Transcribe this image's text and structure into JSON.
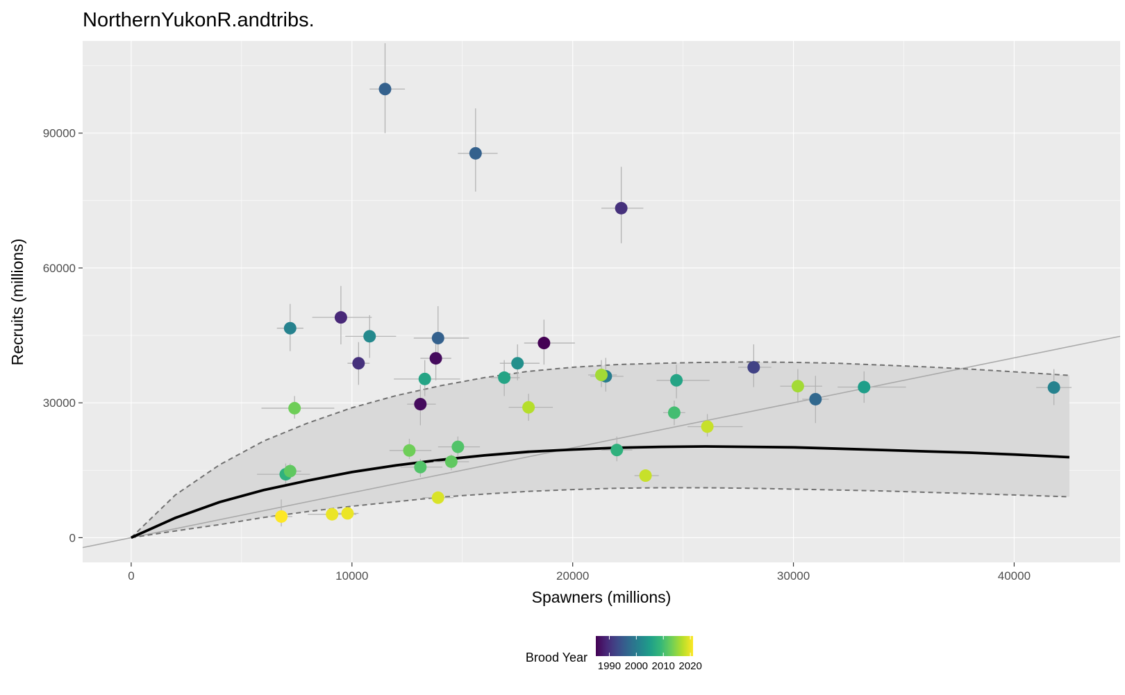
{
  "chart_data": {
    "type": "scatter",
    "title": "NorthernYukonR.andtribs.",
    "xlabel": "Spawners (millions)",
    "ylabel": "Recruits (millions)",
    "xlim": [
      -2200,
      44800
    ],
    "ylim": [
      -5500,
      110500
    ],
    "x_ticks": [
      0,
      10000,
      20000,
      30000,
      40000
    ],
    "y_ticks": [
      0,
      30000,
      60000,
      90000
    ],
    "x_tick_labels": [
      "0",
      "10000",
      "20000",
      "30000",
      "40000"
    ],
    "y_tick_labels": [
      "0",
      "30000",
      "60000",
      "90000"
    ],
    "grid": true,
    "panel_background": "#ebebeb",
    "gridline_color": "#ffffff",
    "legend": {
      "title": "Brood Year",
      "placement": "bottom",
      "type": "colorbar",
      "range": [
        1985,
        2021
      ],
      "ticks": [
        1990,
        2000,
        2010,
        2020
      ],
      "tick_labels": [
        "1990",
        "2000",
        "2010",
        "2020"
      ],
      "colormap": [
        "#440154",
        "#482878",
        "#3e4a89",
        "#31688e",
        "#26828e",
        "#1f9e89",
        "#35b779",
        "#6ece58",
        "#b5de2b",
        "#fde725"
      ]
    },
    "points": [
      {
        "x": 11500,
        "y": 99800,
        "xerr": [
          10800,
          12400
        ],
        "yerr": [
          90000,
          110000
        ],
        "year": 1996
      },
      {
        "x": 15600,
        "y": 85500,
        "xerr": [
          14800,
          16600
        ],
        "yerr": [
          77000,
          95500
        ],
        "year": 1996
      },
      {
        "x": 22200,
        "y": 73300,
        "xerr": [
          21300,
          23200
        ],
        "yerr": [
          65500,
          82500
        ],
        "year": 1990
      },
      {
        "x": 9500,
        "y": 49000,
        "xerr": [
          8200,
          10900
        ],
        "yerr": [
          43000,
          56000
        ],
        "year": 1989
      },
      {
        "x": 7200,
        "y": 46600,
        "xerr": [
          6600,
          7800
        ],
        "yerr": [
          41500,
          52000
        ],
        "year": 2001
      },
      {
        "x": 10800,
        "y": 44800,
        "xerr": [
          9700,
          12000
        ],
        "yerr": [
          40000,
          49500
        ],
        "year": 2002
      },
      {
        "x": 13900,
        "y": 44400,
        "xerr": [
          12800,
          15300
        ],
        "yerr": [
          39500,
          51500
        ],
        "year": 1996
      },
      {
        "x": 18700,
        "y": 43300,
        "xerr": [
          17800,
          20100
        ],
        "yerr": [
          38500,
          48500
        ],
        "year": 1985
      },
      {
        "x": 10300,
        "y": 38800,
        "xerr": [
          9800,
          10800
        ],
        "yerr": [
          34000,
          43500
        ],
        "year": 1990
      },
      {
        "x": 13800,
        "y": 39900,
        "xerr": [
          13100,
          14500
        ],
        "yerr": [
          35000,
          44000
        ],
        "year": 1986
      },
      {
        "x": 17500,
        "y": 38800,
        "xerr": [
          16700,
          18500
        ],
        "yerr": [
          35000,
          43000
        ],
        "year": 2003
      },
      {
        "x": 28200,
        "y": 37900,
        "xerr": [
          27500,
          29000
        ],
        "yerr": [
          33500,
          43000
        ],
        "year": 1992
      },
      {
        "x": 13300,
        "y": 35300,
        "xerr": [
          11900,
          14900
        ],
        "yerr": [
          31500,
          39500
        ],
        "year": 2006
      },
      {
        "x": 16900,
        "y": 35600,
        "xerr": [
          16300,
          17600
        ],
        "yerr": [
          31500,
          39500
        ],
        "year": 2006
      },
      {
        "x": 21500,
        "y": 35900,
        "xerr": [
          20800,
          22300
        ],
        "yerr": [
          32500,
          40000
        ],
        "year": 2000
      },
      {
        "x": 21300,
        "y": 36200,
        "xerr": [
          20700,
          22000
        ],
        "yerr": [
          33500,
          39500
        ],
        "year": 2016
      },
      {
        "x": 24700,
        "y": 35000,
        "xerr": [
          23800,
          26200
        ],
        "yerr": [
          31000,
          38500
        ],
        "year": 2006
      },
      {
        "x": 30200,
        "y": 33700,
        "xerr": [
          29400,
          31300
        ],
        "yerr": [
          30000,
          37500
        ],
        "year": 2016
      },
      {
        "x": 33200,
        "y": 33500,
        "xerr": [
          32000,
          35100
        ],
        "yerr": [
          30000,
          37000
        ],
        "year": 2005
      },
      {
        "x": 41800,
        "y": 33400,
        "xerr": [
          41000,
          42600
        ],
        "yerr": [
          29500,
          37500
        ],
        "year": 2001
      },
      {
        "x": 31000,
        "y": 30800,
        "xerr": [
          30400,
          31600
        ],
        "yerr": [
          25500,
          36000
        ],
        "year": 1997
      },
      {
        "x": 13100,
        "y": 29700,
        "xerr": [
          12500,
          13800
        ],
        "yerr": [
          25000,
          34000
        ],
        "year": 1986
      },
      {
        "x": 7400,
        "y": 28800,
        "xerr": [
          5900,
          9200
        ],
        "yerr": [
          26500,
          31500
        ],
        "year": 2013
      },
      {
        "x": 18000,
        "y": 29000,
        "xerr": [
          17100,
          19100
        ],
        "yerr": [
          26000,
          32000
        ],
        "year": 2017
      },
      {
        "x": 24600,
        "y": 27800,
        "xerr": [
          24100,
          25100
        ],
        "yerr": [
          25000,
          30500
        ],
        "year": 2010
      },
      {
        "x": 26100,
        "y": 24700,
        "xerr": [
          25200,
          27700
        ],
        "yerr": [
          22500,
          27500
        ],
        "year": 2018
      },
      {
        "x": 12600,
        "y": 19400,
        "xerr": [
          11700,
          13600
        ],
        "yerr": [
          17500,
          22000
        ],
        "year": 2013
      },
      {
        "x": 14800,
        "y": 20200,
        "xerr": [
          13900,
          15800
        ],
        "yerr": [
          18000,
          22500
        ],
        "year": 2011
      },
      {
        "x": 22000,
        "y": 19500,
        "xerr": [
          21300,
          22700
        ],
        "yerr": [
          17000,
          22500
        ],
        "year": 2008
      },
      {
        "x": 13100,
        "y": 15700,
        "xerr": [
          12200,
          14100
        ],
        "yerr": [
          13500,
          17500
        ],
        "year": 2011
      },
      {
        "x": 14500,
        "y": 16900,
        "xerr": [
          13700,
          15300
        ],
        "yerr": [
          15000,
          18500
        ],
        "year": 2012
      },
      {
        "x": 7000,
        "y": 14100,
        "xerr": [
          5700,
          8100
        ],
        "yerr": [
          12000,
          16500
        ],
        "year": 2008
      },
      {
        "x": 7200,
        "y": 14800,
        "xerr": [
          6800,
          7700
        ],
        "yerr": [
          13000,
          16500
        ],
        "year": 2012
      },
      {
        "x": 23300,
        "y": 13800,
        "xerr": [
          22800,
          23900
        ],
        "yerr": [
          12500,
          15000
        ],
        "year": 2018
      },
      {
        "x": 13900,
        "y": 8900,
        "xerr": [
          13200,
          14600
        ],
        "yerr": [
          7800,
          10000
        ],
        "year": 2019
      },
      {
        "x": 6800,
        "y": 4700,
        "xerr": [
          6300,
          7300
        ],
        "yerr": [
          2500,
          8500
        ],
        "year": 2021
      },
      {
        "x": 9100,
        "y": 5200,
        "xerr": [
          8000,
          10200
        ],
        "yerr": [
          4000,
          6500
        ],
        "year": 2020
      },
      {
        "x": 9800,
        "y": 5400,
        "xerr": [
          9300,
          10300
        ],
        "yerr": [
          4500,
          6500
        ],
        "year": 2020
      }
    ],
    "fit": {
      "x": [
        0,
        2000,
        4000,
        6000,
        8000,
        10000,
        12000,
        14000,
        16000,
        18000,
        20000,
        22000,
        24000,
        26000,
        28000,
        30000,
        32000,
        34000,
        36000,
        38000,
        40000,
        42500
      ],
      "median": [
        0,
        4400,
        7900,
        10600,
        12700,
        14600,
        16100,
        17300,
        18300,
        19100,
        19600,
        20000,
        20200,
        20300,
        20200,
        20100,
        19800,
        19500,
        19200,
        18900,
        18500,
        17900
      ],
      "upper": [
        0,
        9500,
        16200,
        21500,
        25500,
        28900,
        31600,
        33800,
        35600,
        37000,
        37900,
        38500,
        38800,
        39000,
        39100,
        39000,
        38800,
        38400,
        38000,
        37500,
        36900,
        36100
      ],
      "lower": [
        0,
        1500,
        2900,
        4500,
        5800,
        7000,
        8000,
        9000,
        9700,
        10300,
        10700,
        11000,
        11100,
        11100,
        11000,
        10800,
        10600,
        10400,
        10100,
        9800,
        9500,
        9100
      ]
    },
    "replacement_line": {
      "slope": 1
    }
  }
}
